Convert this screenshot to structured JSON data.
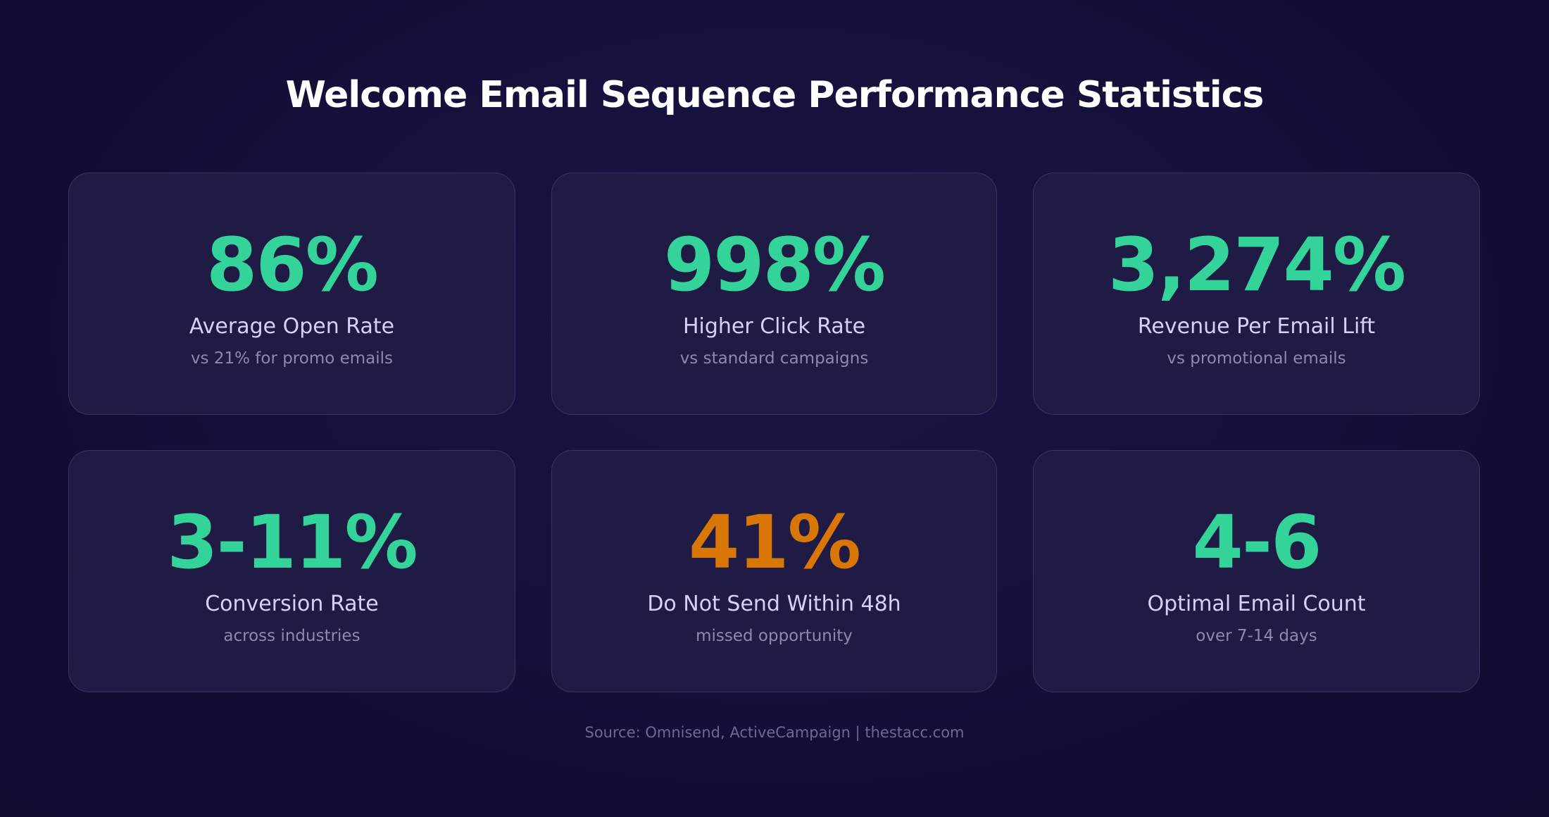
{
  "title": "Welcome Email Sequence Performance Statistics",
  "cards": [
    {
      "value": "86%",
      "label": "Average Open Rate",
      "note": "vs 21% for promo emails",
      "color": "#34d399"
    },
    {
      "value": "998%",
      "label": "Higher Click Rate",
      "note": "vs standard campaigns",
      "color": "#34d399"
    },
    {
      "value": "3,274%",
      "label": "Revenue Per Email Lift",
      "note": "vs promotional emails",
      "color": "#34d399"
    },
    {
      "value": "3-11%",
      "label": "Conversion Rate",
      "note": "across industries",
      "color": "#34d399"
    },
    {
      "value": "41%",
      "label": "Do Not Send Within 48h",
      "note": "missed opportunity",
      "color": "#d97706"
    },
    {
      "value": "4-6",
      "label": "Optimal Email Count",
      "note": "over 7-14 days",
      "color": "#34d399"
    }
  ],
  "source": "Source: Omnisend, ActiveCampaign | thestacc.com"
}
